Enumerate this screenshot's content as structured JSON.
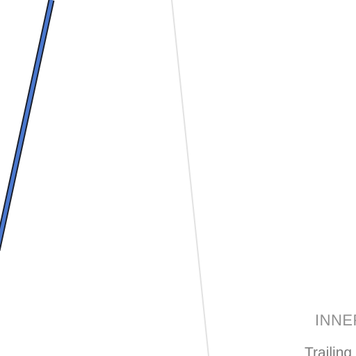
{
  "map": {
    "colors": {
      "background": "#ffffff",
      "route_fill": "#4a78cf",
      "route_casing": "#1a1f2c",
      "boundary_line": "#e2e2e2",
      "district_label": "#8f8f8f",
      "trail_label": "#7a7a7a"
    },
    "labels": {
      "district": "INNER",
      "trail": "Trailing"
    }
  }
}
